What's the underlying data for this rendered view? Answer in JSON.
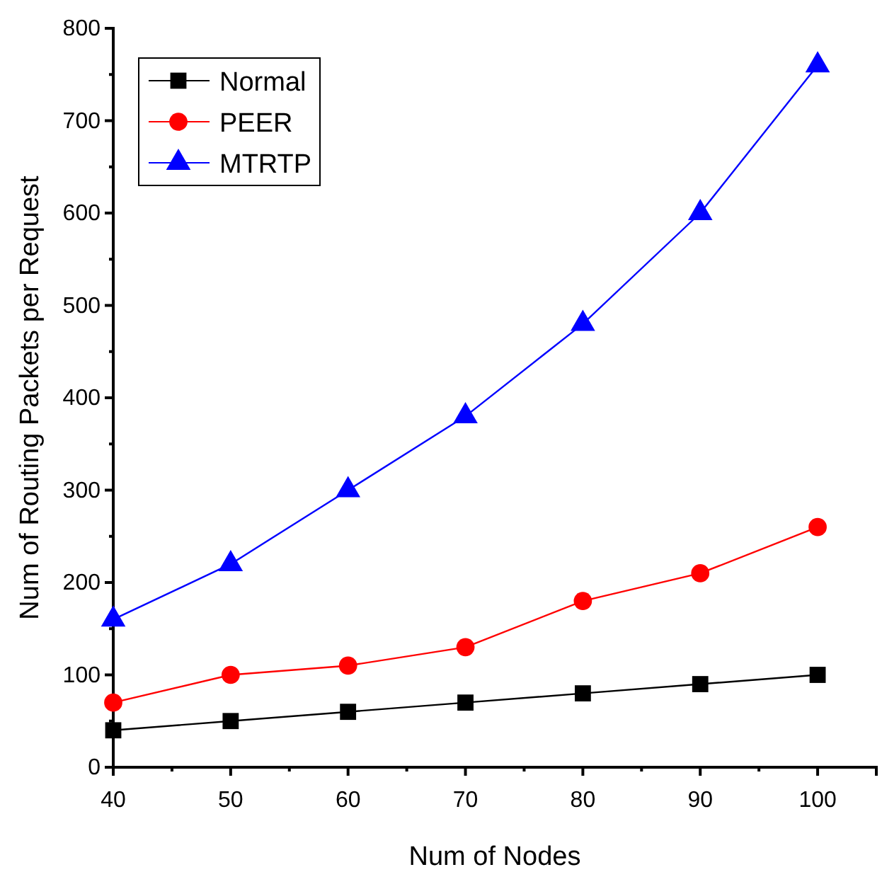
{
  "chart_data": {
    "type": "line",
    "xlabel": "Num of Nodes",
    "ylabel": "Num of Routing Packets per Request",
    "x": [
      40,
      50,
      60,
      70,
      80,
      90,
      100
    ],
    "series": [
      {
        "name": "Normal",
        "color": "#000000",
        "marker": "square",
        "values": [
          40,
          50,
          60,
          70,
          80,
          90,
          100
        ]
      },
      {
        "name": "PEER",
        "color": "#ff0000",
        "marker": "circle",
        "values": [
          70,
          100,
          110,
          130,
          180,
          210,
          260
        ]
      },
      {
        "name": "MTRTP",
        "color": "#0000ff",
        "marker": "triangle",
        "values": [
          160,
          220,
          300,
          380,
          480,
          600,
          760
        ]
      }
    ],
    "xlim": [
      40,
      105
    ],
    "xticks": [
      40,
      50,
      60,
      70,
      80,
      90,
      100
    ],
    "ylim": [
      0,
      800
    ],
    "yticks": [
      0,
      100,
      200,
      300,
      400,
      500,
      600,
      700,
      800
    ],
    "grid": false,
    "legend": "top left",
    "line_style": "solid"
  }
}
